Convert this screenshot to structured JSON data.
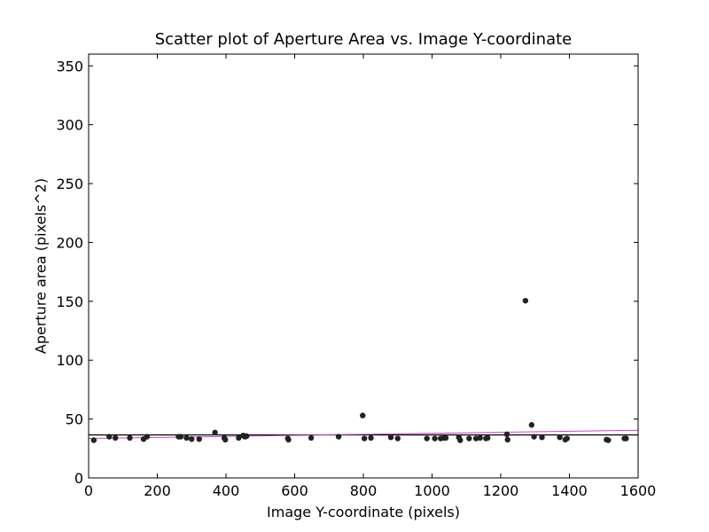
{
  "chart_data": {
    "type": "scatter",
    "title": "Scatter plot of Aperture Area vs. Image Y-coordinate",
    "xlabel": "Image Y-coordinate (pixels)",
    "ylabel": "Aperture area (pixels^2)",
    "xlim": [
      0,
      1600
    ],
    "ylim": [
      0,
      360
    ],
    "xticks": [
      0,
      200,
      400,
      600,
      800,
      1000,
      1200,
      1400,
      1600
    ],
    "yticks": [
      0,
      50,
      100,
      150,
      200,
      250,
      300,
      350
    ],
    "grid": false,
    "legend": "none",
    "colors": {
      "points": "#222222",
      "horizontal_line": "#000000",
      "fit_line": "#cc44cc"
    },
    "reference_lines": [
      {
        "kind": "horizontal",
        "y": 36.5,
        "color": "#000000"
      },
      {
        "kind": "linear_fit",
        "x": [
          0,
          1600
        ],
        "y": [
          33.5,
          40.5
        ],
        "color": "#cc44cc"
      }
    ],
    "points": [
      {
        "x": 15,
        "y": 32
      },
      {
        "x": 60,
        "y": 35
      },
      {
        "x": 78,
        "y": 34
      },
      {
        "x": 120,
        "y": 34
      },
      {
        "x": 160,
        "y": 33
      },
      {
        "x": 170,
        "y": 35
      },
      {
        "x": 262,
        "y": 35
      },
      {
        "x": 268,
        "y": 35
      },
      {
        "x": 285,
        "y": 34
      },
      {
        "x": 300,
        "y": 33
      },
      {
        "x": 322,
        "y": 33
      },
      {
        "x": 368,
        "y": 38.5
      },
      {
        "x": 395,
        "y": 34
      },
      {
        "x": 398,
        "y": 32.5
      },
      {
        "x": 437,
        "y": 34
      },
      {
        "x": 450,
        "y": 36
      },
      {
        "x": 455,
        "y": 35
      },
      {
        "x": 460,
        "y": 35.5
      },
      {
        "x": 580,
        "y": 33.5
      },
      {
        "x": 582,
        "y": 32.5
      },
      {
        "x": 648,
        "y": 34
      },
      {
        "x": 728,
        "y": 35
      },
      {
        "x": 798,
        "y": 53
      },
      {
        "x": 803,
        "y": 33.5
      },
      {
        "x": 822,
        "y": 34
      },
      {
        "x": 880,
        "y": 34.5
      },
      {
        "x": 900,
        "y": 33.5
      },
      {
        "x": 985,
        "y": 33.5
      },
      {
        "x": 1008,
        "y": 33.5
      },
      {
        "x": 1025,
        "y": 33.5
      },
      {
        "x": 1035,
        "y": 34
      },
      {
        "x": 1040,
        "y": 34
      },
      {
        "x": 1078,
        "y": 34.5
      },
      {
        "x": 1082,
        "y": 32
      },
      {
        "x": 1108,
        "y": 33.5
      },
      {
        "x": 1128,
        "y": 33.5
      },
      {
        "x": 1140,
        "y": 34
      },
      {
        "x": 1157,
        "y": 33.5
      },
      {
        "x": 1162,
        "y": 34
      },
      {
        "x": 1218,
        "y": 37
      },
      {
        "x": 1220,
        "y": 32.5
      },
      {
        "x": 1272,
        "y": 150.5
      },
      {
        "x": 1290,
        "y": 45
      },
      {
        "x": 1297,
        "y": 35
      },
      {
        "x": 1320,
        "y": 34.5
      },
      {
        "x": 1372,
        "y": 34.5
      },
      {
        "x": 1388,
        "y": 32.5
      },
      {
        "x": 1393,
        "y": 33.5
      },
      {
        "x": 1508,
        "y": 32.5
      },
      {
        "x": 1513,
        "y": 32
      },
      {
        "x": 1560,
        "y": 33.5
      },
      {
        "x": 1565,
        "y": 33.5
      }
    ]
  }
}
